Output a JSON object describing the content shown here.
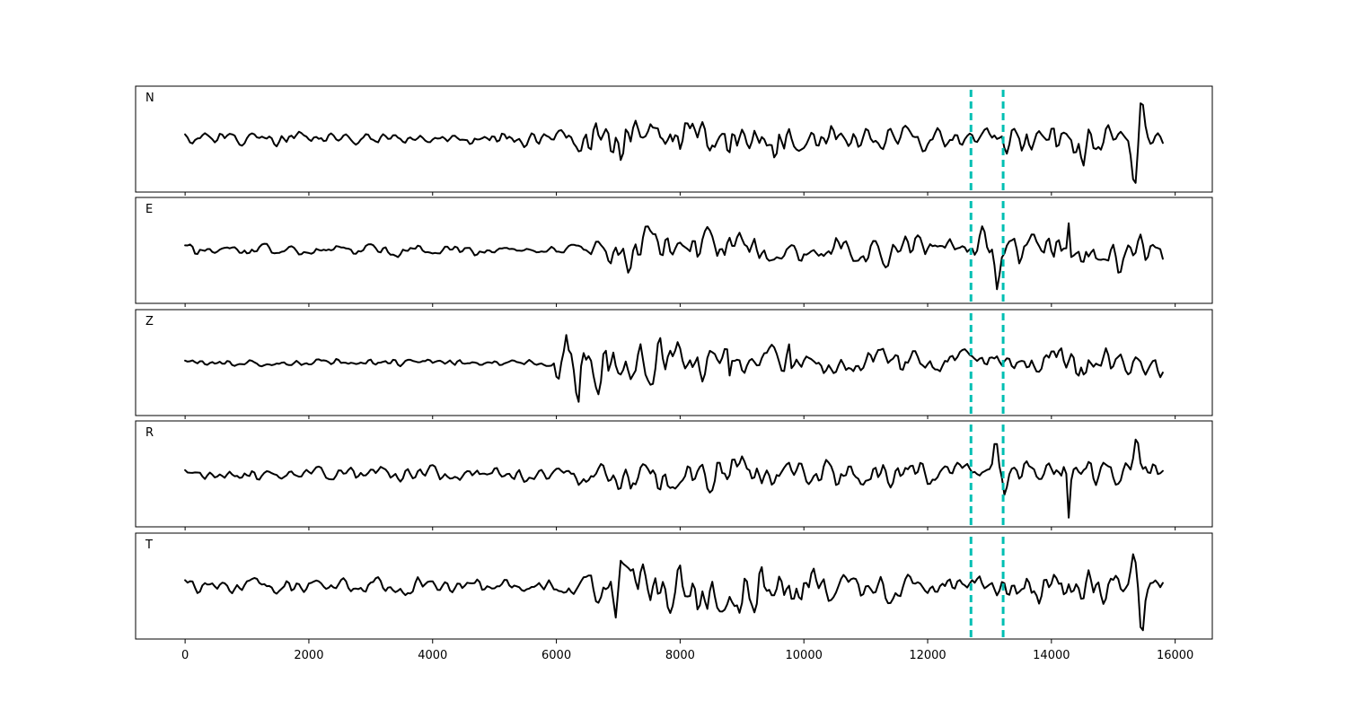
{
  "chart_data": {
    "type": "line",
    "title": "",
    "xlabel": "",
    "ylabel": "",
    "xlim": [
      -800,
      16600
    ],
    "x_ticks": [
      0,
      2000,
      4000,
      6000,
      8000,
      10000,
      12000,
      14000,
      16000
    ],
    "x_tick_labels": [
      "0",
      "2000",
      "4000",
      "6000",
      "8000",
      "10000",
      "12000",
      "14000",
      "16000"
    ],
    "x_end": 15800,
    "ylim": [
      -1,
      1
    ],
    "grid": false,
    "legend": "none",
    "trace_color": "#000000",
    "marker_color": "#00bfb3",
    "markers": [
      {
        "x": 12700,
        "style": "dashed"
      },
      {
        "x": 13220,
        "style": "dashed"
      }
    ],
    "series": [
      {
        "label": "N",
        "envelope": [
          [
            0,
            0.1
          ],
          [
            5800,
            0.12
          ],
          [
            6200,
            0.18
          ],
          [
            7000,
            0.35
          ],
          [
            8000,
            0.32
          ],
          [
            9400,
            0.38
          ],
          [
            10500,
            0.22
          ],
          [
            12600,
            0.14
          ],
          [
            12800,
            0.12
          ],
          [
            13400,
            0.3
          ],
          [
            14500,
            0.35
          ],
          [
            15000,
            0.15
          ],
          [
            15800,
            0.15
          ]
        ],
        "pulses": [
          [
            15350,
            -0.78,
            60
          ],
          [
            15450,
            0.9,
            50
          ]
        ]
      },
      {
        "label": "E",
        "envelope": [
          [
            0,
            0.1
          ],
          [
            5800,
            0.08
          ],
          [
            6500,
            0.15
          ],
          [
            7200,
            0.35
          ],
          [
            8500,
            0.3
          ],
          [
            10000,
            0.28
          ],
          [
            12500,
            0.22
          ],
          [
            12800,
            0.18
          ],
          [
            13300,
            0.35
          ],
          [
            15800,
            0.3
          ]
        ],
        "pulses": [
          [
            12900,
            0.55,
            60
          ],
          [
            13130,
            -0.7,
            50
          ],
          [
            14280,
            0.95,
            30
          ],
          [
            15100,
            -0.4,
            50
          ]
        ]
      },
      {
        "label": "Z",
        "envelope": [
          [
            0,
            0.06
          ],
          [
            5900,
            0.08
          ],
          [
            6050,
            0.6
          ],
          [
            6400,
            0.7
          ],
          [
            7000,
            0.4
          ],
          [
            7800,
            0.5
          ],
          [
            8500,
            0.25
          ],
          [
            10000,
            0.22
          ],
          [
            13000,
            0.18
          ],
          [
            14500,
            0.3
          ],
          [
            15800,
            0.25
          ]
        ],
        "pulses": [
          [
            6150,
            0.9,
            40
          ],
          [
            6350,
            -0.9,
            40
          ],
          [
            8800,
            -0.55,
            30
          ],
          [
            9750,
            0.5,
            30
          ]
        ]
      },
      {
        "label": "R",
        "envelope": [
          [
            0,
            0.1
          ],
          [
            6000,
            0.12
          ],
          [
            7000,
            0.25
          ],
          [
            8000,
            0.28
          ],
          [
            10000,
            0.24
          ],
          [
            12600,
            0.16
          ],
          [
            12800,
            0.12
          ],
          [
            13500,
            0.25
          ],
          [
            15800,
            0.2
          ]
        ],
        "pulses": [
          [
            7200,
            -0.45,
            40
          ],
          [
            13100,
            0.82,
            50
          ],
          [
            13250,
            -0.6,
            40
          ],
          [
            14280,
            -0.92,
            30
          ],
          [
            15380,
            0.65,
            60
          ]
        ]
      },
      {
        "label": "T",
        "envelope": [
          [
            0,
            0.12
          ],
          [
            6000,
            0.15
          ],
          [
            6500,
            0.3
          ],
          [
            7000,
            0.45
          ],
          [
            9400,
            0.42
          ],
          [
            10500,
            0.25
          ],
          [
            12600,
            0.18
          ],
          [
            13000,
            0.22
          ],
          [
            14600,
            0.4
          ],
          [
            15100,
            0.15
          ],
          [
            15800,
            0.18
          ]
        ],
        "pulses": [
          [
            6980,
            -0.45,
            40
          ],
          [
            15320,
            0.7,
            60
          ],
          [
            15460,
            -0.95,
            40
          ]
        ]
      }
    ]
  }
}
